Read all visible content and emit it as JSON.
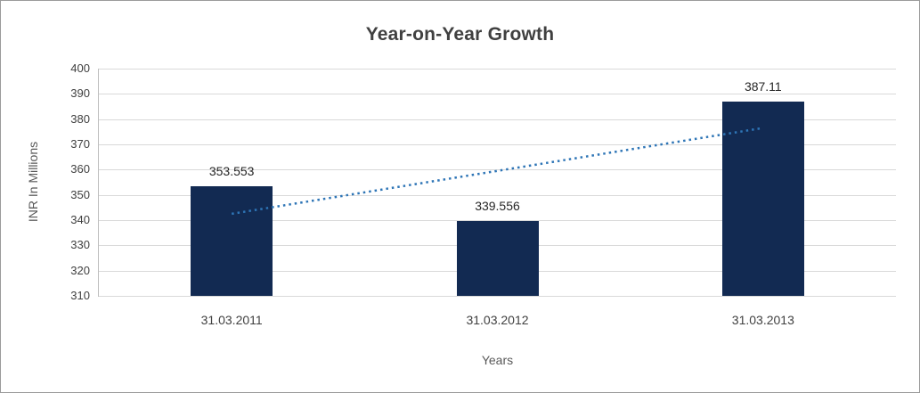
{
  "chart_data": {
    "type": "bar",
    "title": "Year-on-Year Growth",
    "categories": [
      "31.03.2011",
      "31.03.2012",
      "31.03.2013"
    ],
    "values": [
      353.553,
      339.556,
      387.11
    ],
    "data_labels": [
      "353.553",
      "339.556",
      "387.11"
    ],
    "xlabel": "Years",
    "ylabel": "INR In Millions",
    "ylim": [
      310,
      400
    ],
    "yticks": [
      310,
      320,
      330,
      340,
      350,
      360,
      370,
      380,
      390,
      400
    ],
    "grid": true,
    "legend": "none",
    "bar_color": "#122a52",
    "trendline": {
      "type": "linear",
      "style": "dotted",
      "color": "#2e75b6",
      "start_value": 342.5,
      "end_value": 376.5
    }
  },
  "styles": {
    "title_color": "#404040",
    "axis_text_color": "#595959",
    "tick_text_color": "#404040",
    "data_label_color": "#262626",
    "gridline_color": "#d9d9d9",
    "axis_line_color": "#bfbfbf",
    "frame_border_color": "#9b9b9b",
    "background": "#ffffff"
  }
}
